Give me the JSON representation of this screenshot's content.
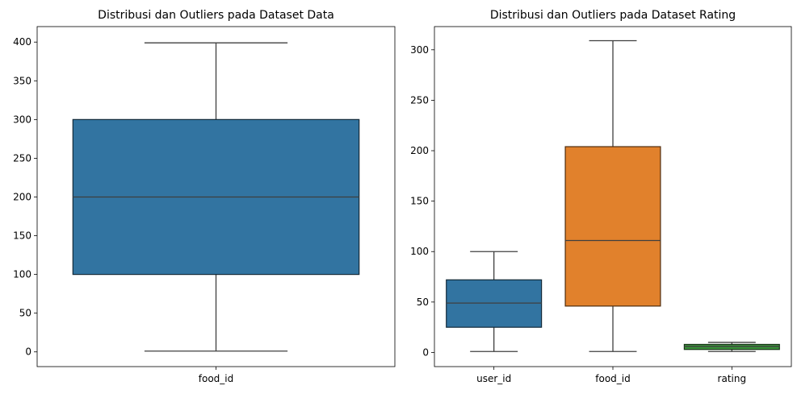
{
  "chart_data": [
    {
      "type": "box",
      "title": "Distribusi dan Outliers pada Dataset Data",
      "xlabel": "",
      "ylabel": "",
      "ylim": [
        -19,
        420
      ],
      "yticks": [
        0,
        50,
        100,
        150,
        200,
        250,
        300,
        350,
        400
      ],
      "categories": [
        "food_id"
      ],
      "boxes": [
        {
          "category": "food_id",
          "min": 1,
          "q1": 100,
          "median": 200,
          "q3": 300,
          "max": 399,
          "color": "#3274a1"
        }
      ],
      "grid": false,
      "legend": "none"
    },
    {
      "type": "box",
      "title": "Distribusi dan Outliers pada Dataset Rating",
      "xlabel": "",
      "ylabel": "",
      "ylim": [
        -14,
        323
      ],
      "yticks": [
        0,
        50,
        100,
        150,
        200,
        250,
        300
      ],
      "categories": [
        "user_id",
        "food_id",
        "rating"
      ],
      "boxes": [
        {
          "category": "user_id",
          "min": 1,
          "q1": 25,
          "median": 49,
          "q3": 72,
          "max": 100,
          "color": "#3274a1"
        },
        {
          "category": "food_id",
          "min": 1,
          "q1": 46,
          "median": 111,
          "q3": 204,
          "max": 309,
          "color": "#e1812c"
        },
        {
          "category": "rating",
          "min": 1,
          "q1": 3,
          "median": 6,
          "q3": 8,
          "max": 10,
          "color": "#3a923a"
        }
      ],
      "grid": false,
      "legend": "none"
    }
  ]
}
